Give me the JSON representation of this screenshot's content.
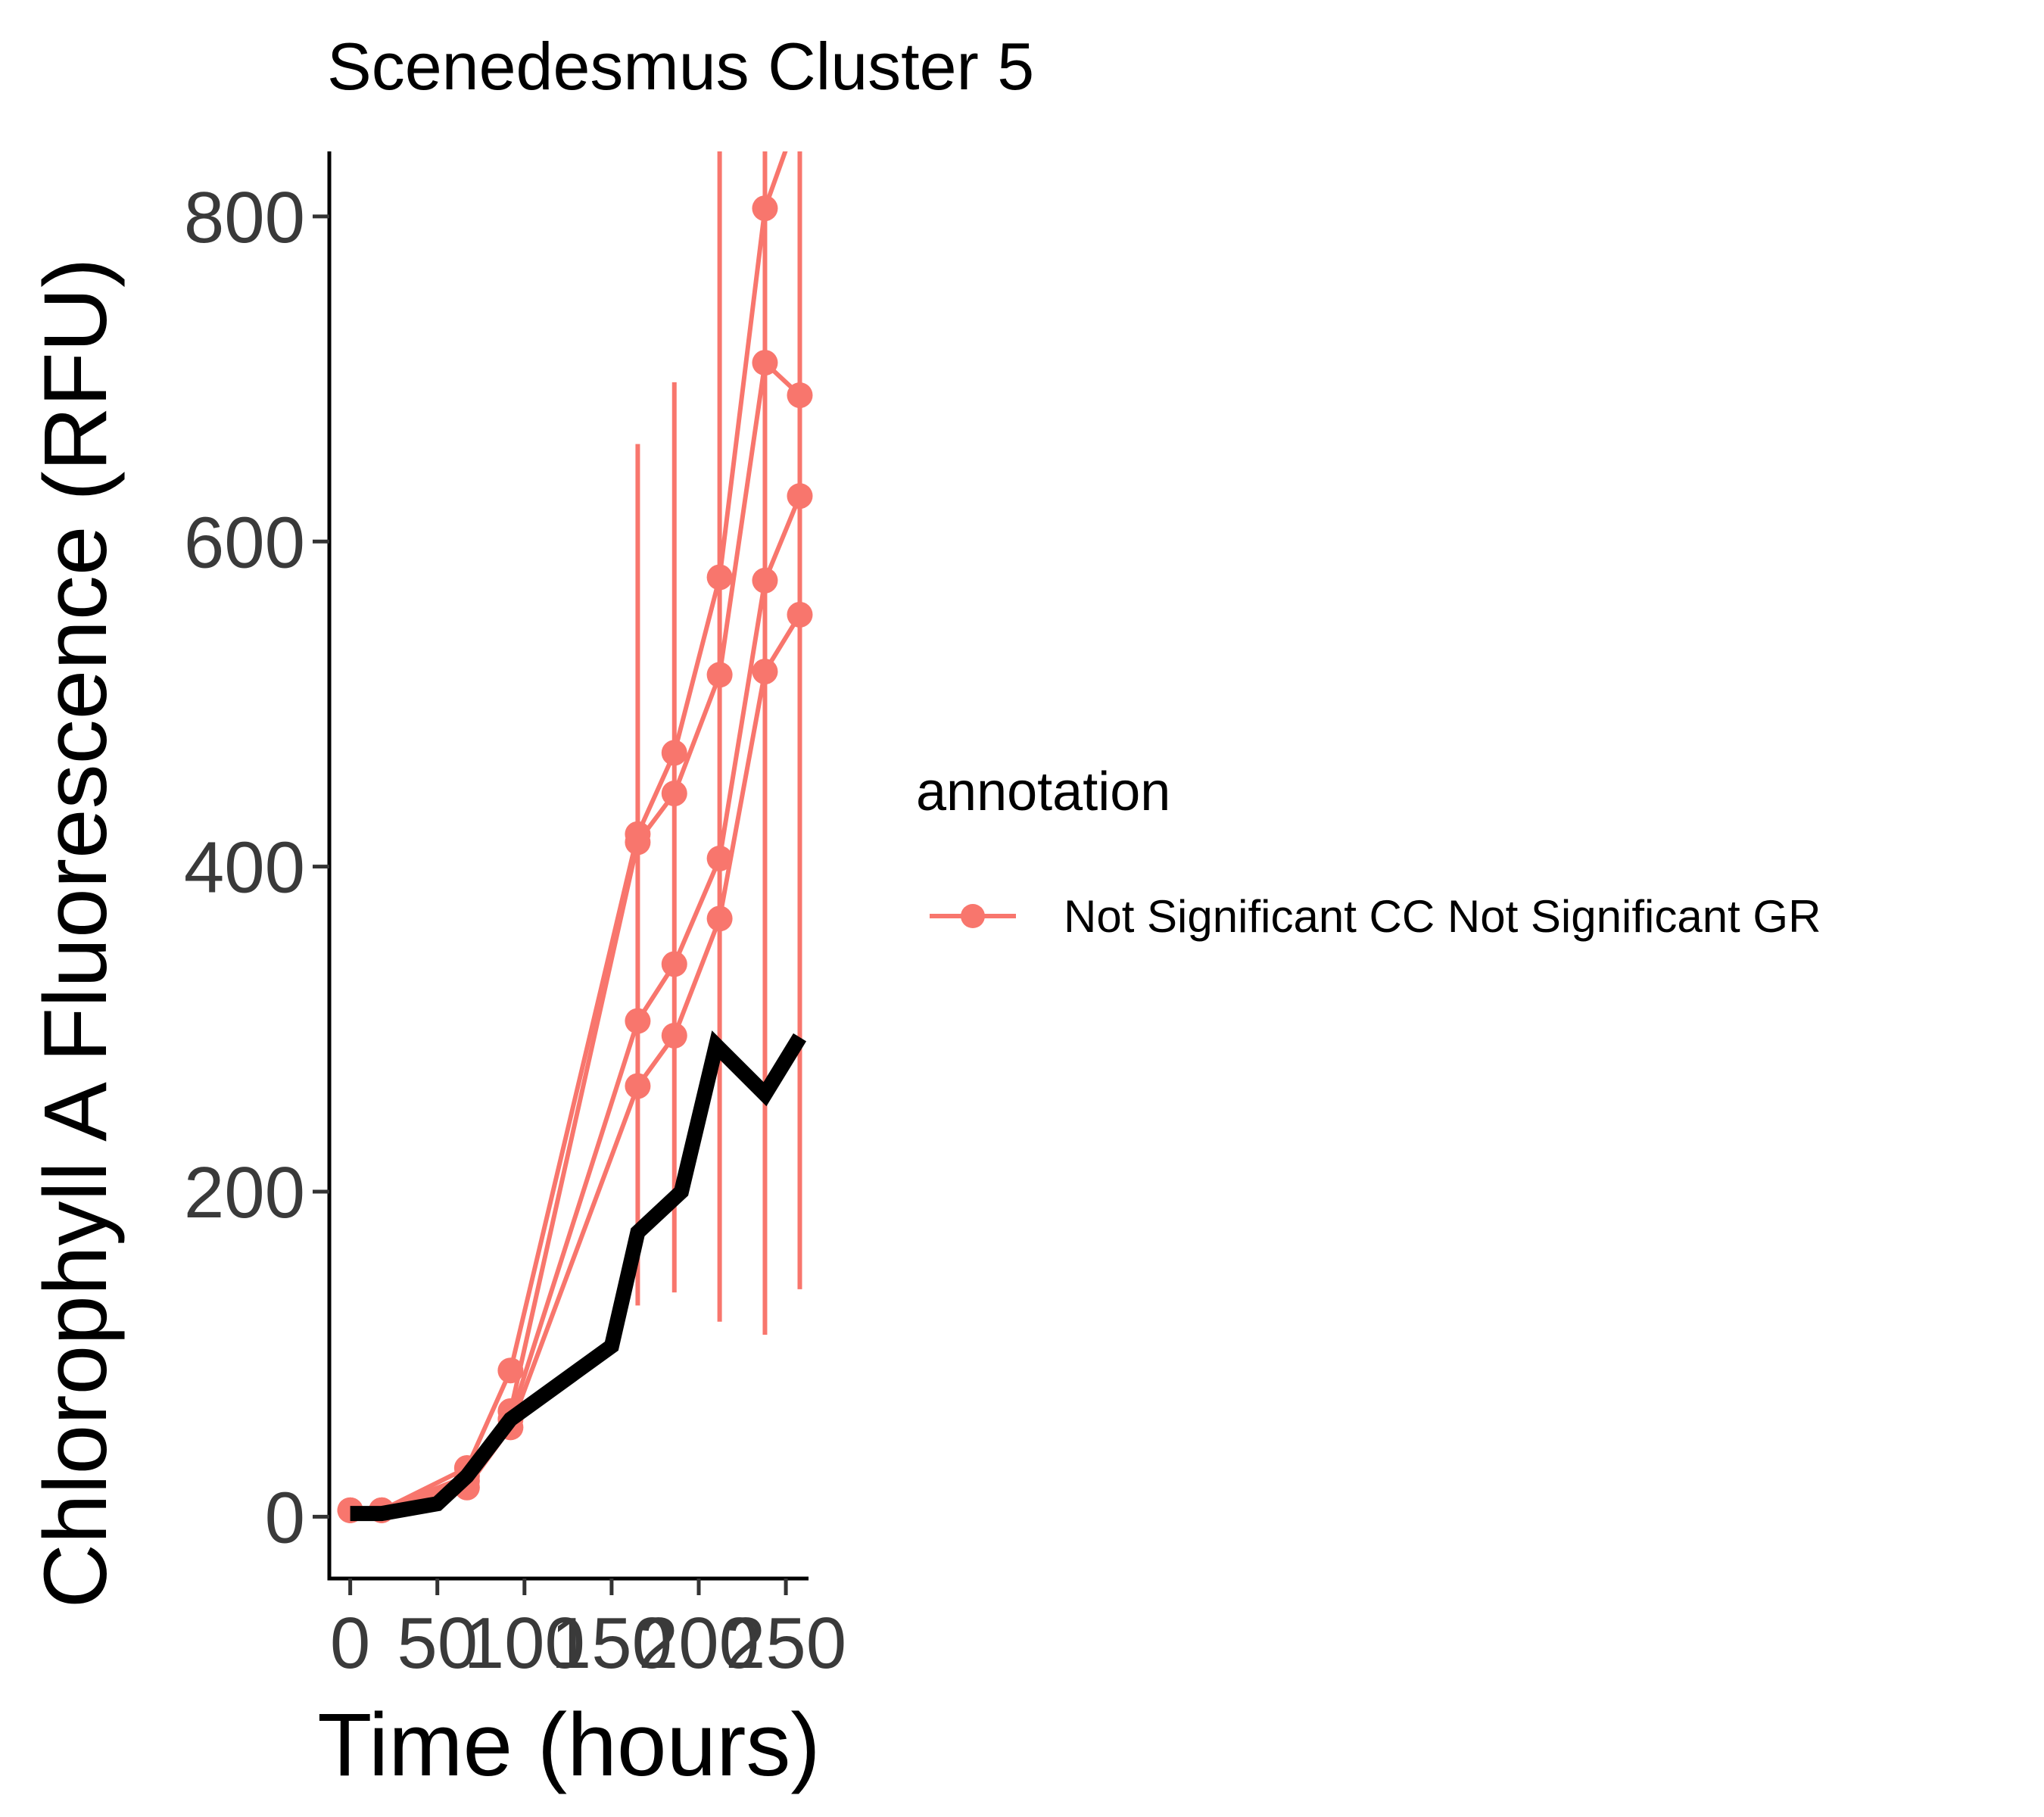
{
  "chart_data": {
    "type": "line",
    "title": "Scenedesmus Cluster 5",
    "xlabel": "Time (hours)",
    "ylabel": "Chlorophyll A Fluorescence (RFU)",
    "xlim": [
      -12,
      263
    ],
    "ylim": [
      -38,
      840
    ],
    "x_ticks": [
      0,
      50,
      100,
      150,
      200,
      250
    ],
    "y_ticks": [
      0,
      200,
      400,
      600,
      800
    ],
    "grid": false,
    "legend": {
      "title": "annotation",
      "placement": "right",
      "entries": [
        {
          "label": "Not Significant CC Not Significant GR",
          "color": "#F8766D"
        }
      ]
    },
    "series": [
      {
        "color": "#F8766D",
        "points": [
          [
            0,
            4
          ],
          [
            18,
            4
          ],
          [
            67,
            30
          ],
          [
            92,
            90
          ],
          [
            165,
            420
          ],
          [
            186,
            470
          ],
          [
            212,
            578
          ],
          [
            238,
            805
          ],
          [
            263,
            880
          ]
        ]
      },
      {
        "color": "#F8766D",
        "points": [
          [
            0,
            4
          ],
          [
            18,
            4
          ],
          [
            67,
            25
          ],
          [
            92,
            65
          ],
          [
            165,
            415
          ],
          [
            186,
            445
          ],
          [
            212,
            518
          ],
          [
            238,
            710
          ],
          [
            258,
            690
          ]
        ]
      },
      {
        "color": "#F8766D",
        "points": [
          [
            0,
            4
          ],
          [
            18,
            4
          ],
          [
            67,
            22
          ],
          [
            92,
            60
          ],
          [
            165,
            305
          ],
          [
            186,
            340
          ],
          [
            212,
            405
          ],
          [
            238,
            576
          ],
          [
            258,
            628
          ]
        ]
      },
      {
        "color": "#F8766D",
        "points": [
          [
            0,
            4
          ],
          [
            18,
            4
          ],
          [
            67,
            18
          ],
          [
            92,
            55
          ],
          [
            165,
            265
          ],
          [
            186,
            296
          ],
          [
            212,
            368
          ],
          [
            238,
            520
          ],
          [
            258,
            555
          ]
        ]
      },
      {
        "color": "#000000",
        "style": "thick",
        "points": [
          [
            0,
            2
          ],
          [
            18,
            2
          ],
          [
            50,
            8
          ],
          [
            67,
            25
          ],
          [
            92,
            60
          ],
          [
            150,
            105
          ],
          [
            165,
            175
          ],
          [
            190,
            200
          ],
          [
            210,
            290
          ],
          [
            238,
            260
          ],
          [
            258,
            295
          ]
        ]
      }
    ],
    "error_bars": {
      "color": "#F8766D",
      "bars": [
        {
          "x": 165,
          "low": 130,
          "high": 660
        },
        {
          "x": 186,
          "low": 138,
          "high": 698
        },
        {
          "x": 212,
          "low": 120,
          "high": 840
        },
        {
          "x": 238,
          "low": 112,
          "high": 840
        },
        {
          "x": 258,
          "low": 140,
          "high": 840
        }
      ]
    }
  }
}
